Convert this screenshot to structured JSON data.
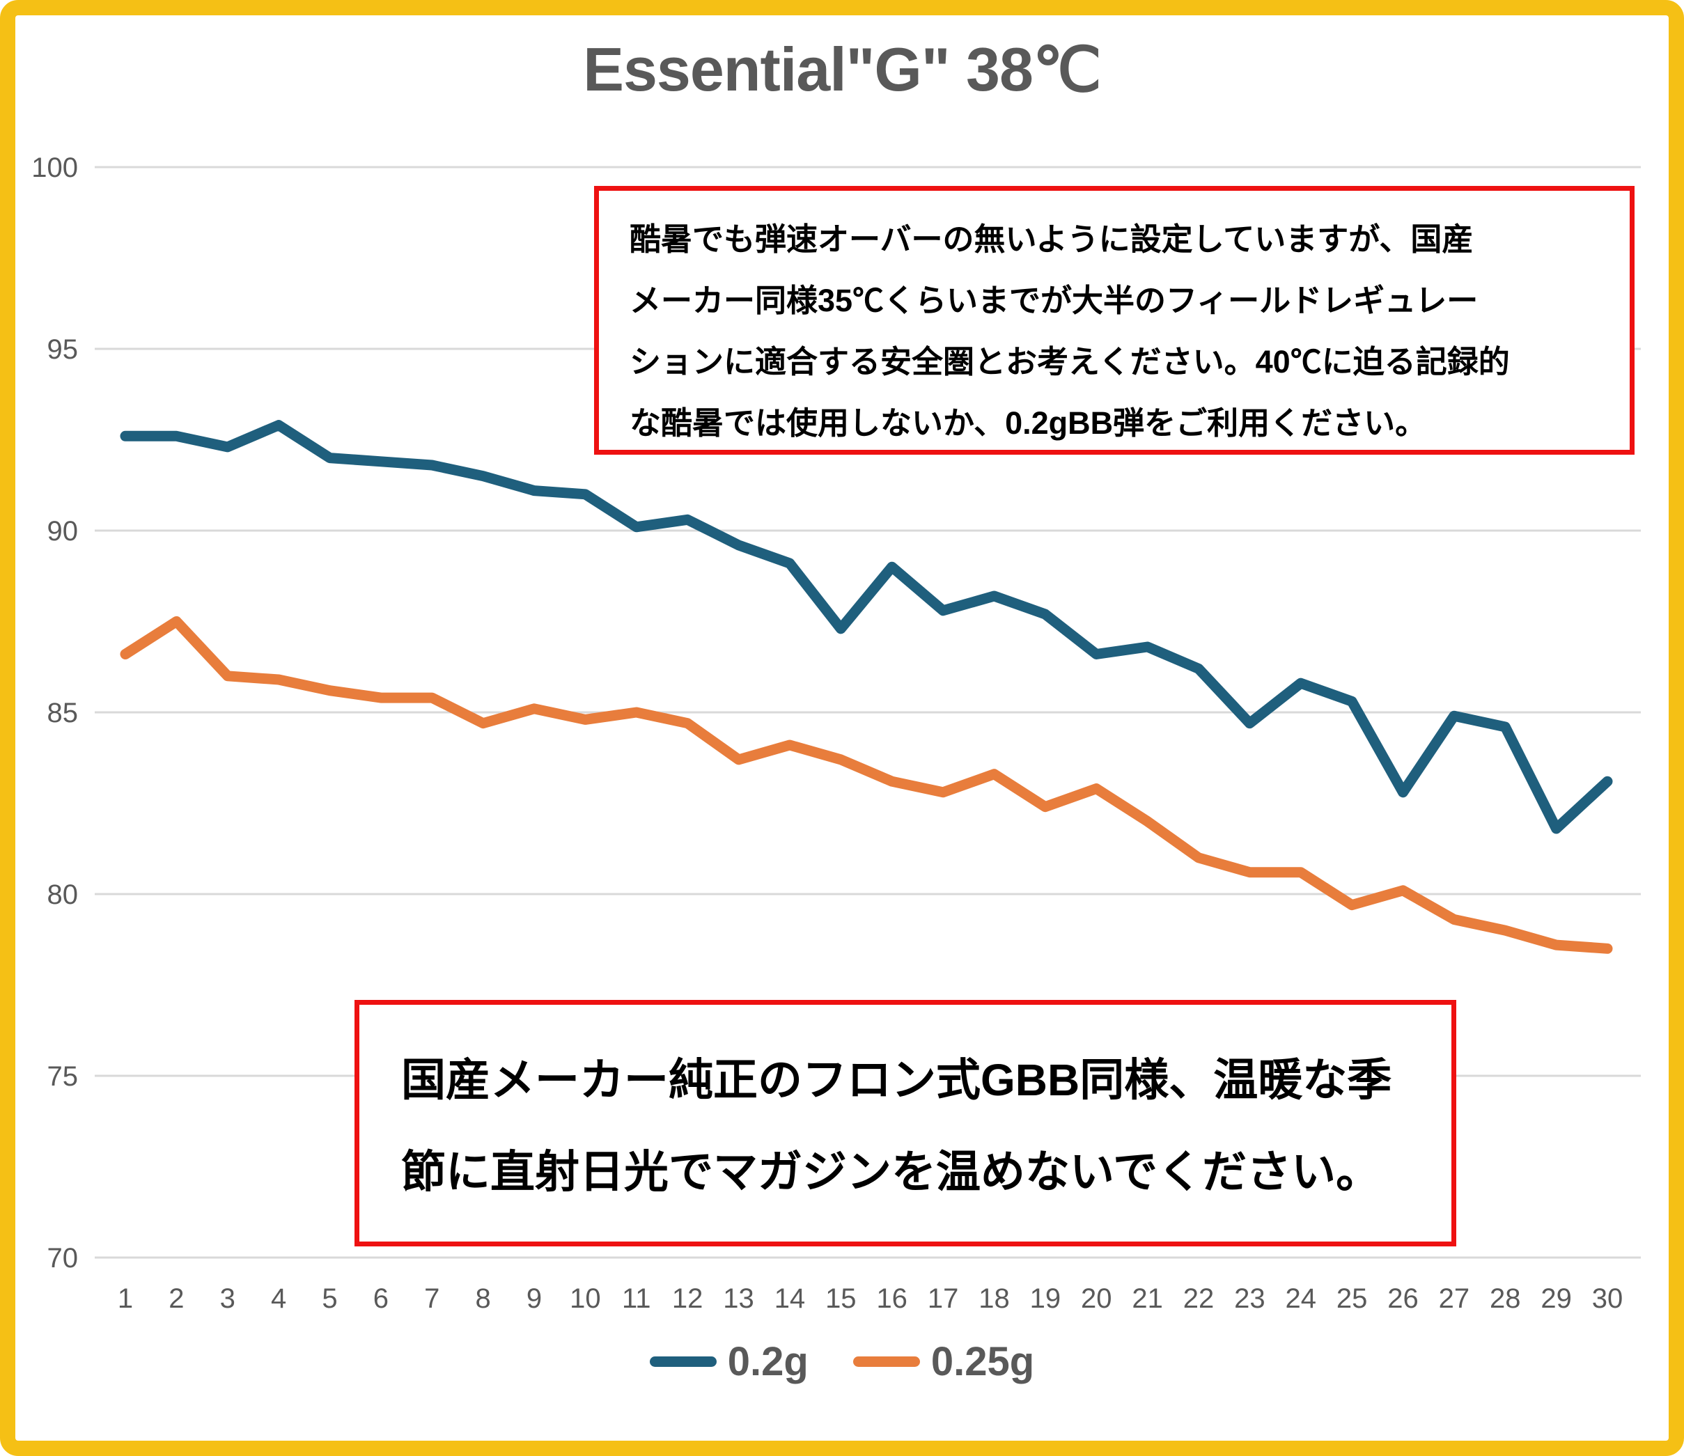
{
  "frame": {
    "border_color": "#F5C015"
  },
  "chart_data": {
    "type": "line",
    "title": "Essential\"G\" 38℃",
    "xlabel": "",
    "ylabel": "",
    "x": [
      1,
      2,
      3,
      4,
      5,
      6,
      7,
      8,
      9,
      10,
      11,
      12,
      13,
      14,
      15,
      16,
      17,
      18,
      19,
      20,
      21,
      22,
      23,
      24,
      25,
      26,
      27,
      28,
      29,
      30
    ],
    "y_ticks": [
      100,
      95,
      90,
      85,
      80,
      75,
      70
    ],
    "ylim": [
      70,
      100
    ],
    "grid": true,
    "legend_position": "bottom-center",
    "grid_color": "#D9D9D9",
    "text_color": "#595959",
    "series": [
      {
        "name": "0.2g",
        "color": "#1F5F7D",
        "values": [
          92.6,
          92.6,
          92.3,
          92.9,
          92.0,
          91.9,
          91.8,
          91.5,
          91.1,
          91.0,
          90.1,
          90.3,
          89.6,
          89.1,
          87.3,
          89.0,
          87.8,
          88.2,
          87.7,
          86.6,
          86.8,
          86.2,
          84.7,
          85.8,
          85.3,
          82.8,
          84.9,
          84.6,
          81.8,
          83.1
        ]
      },
      {
        "name": "0.25g",
        "color": "#E87D3C",
        "values": [
          86.6,
          87.5,
          86.0,
          85.9,
          85.6,
          85.4,
          85.4,
          84.7,
          85.1,
          84.8,
          85.0,
          84.7,
          83.7,
          84.1,
          83.7,
          83.1,
          82.8,
          83.3,
          82.4,
          82.9,
          82.0,
          81.0,
          80.6,
          80.6,
          79.7,
          80.1,
          79.3,
          79.0,
          78.6,
          78.5
        ]
      }
    ]
  },
  "annotations": {
    "box1": {
      "border_color": "#EE1111",
      "lines": [
        "酷暑でも弾速オーバーの無いように設定していますが、国産",
        "メーカー同様35℃くらいまでが大半のフィールドレギュレー",
        "ションに適合する安全圏とお考えください。40℃に迫る記録的",
        "な酷暑では使用しないか、0.2gBB弾をご利用ください。"
      ]
    },
    "box2": {
      "border_color": "#EE1111",
      "lines": [
        "国産メーカー純正のフロン式GBB同様、温暖な季",
        "節に直射日光でマガジンを温めないでください。"
      ]
    }
  }
}
